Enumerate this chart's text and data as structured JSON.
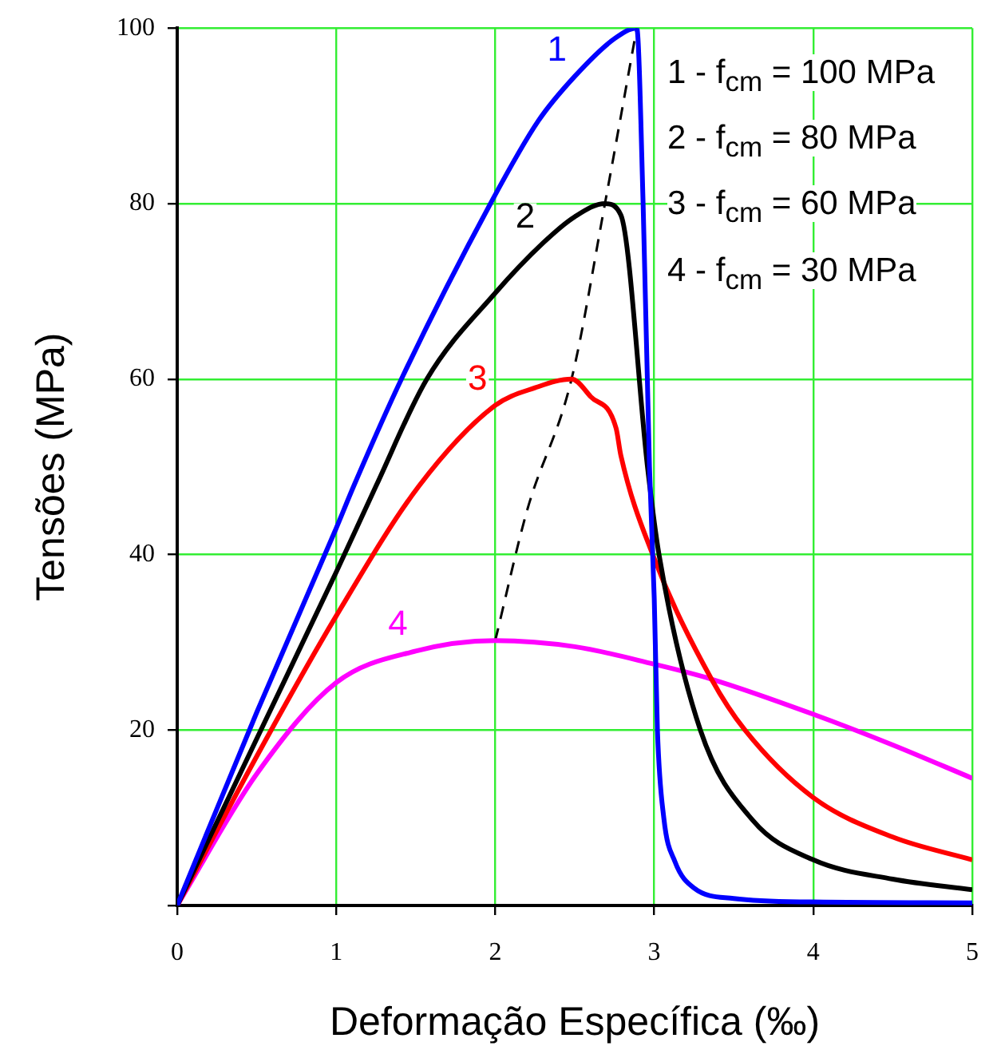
{
  "chart_data": {
    "type": "line",
    "xlabel": "Deformação Específica (‰)",
    "ylabel": "Tensões (MPa)",
    "xlim": [
      0,
      5
    ],
    "xticks": [
      0,
      1,
      2,
      3,
      4,
      5
    ],
    "ylim": [
      0,
      100
    ],
    "yticks": [
      {
        "value": 0,
        "label": null
      },
      20,
      40,
      60,
      80,
      100
    ],
    "grid": true,
    "legend": false,
    "marker": "none",
    "line_style": "solid",
    "annotations": [
      "1 - f$_{cm}$ = 100 MPa",
      "2 - f$_{cm}$ = 80 MPa",
      "3 - f$_{cm}$ = 60 MPa",
      "4 - f$_{cm}$ = 30 MPa"
    ],
    "series": [
      {
        "name": "1",
        "color": "#0000ff",
        "x": [
          0,
          0.5,
          1,
          1.11,
          1.41,
          1.97,
          2.27,
          2.5,
          2.75,
          2.89,
          2.93,
          2.97,
          3.0,
          3.02,
          3.06,
          3.13,
          3.25,
          3.5,
          4,
          5
        ],
        "values": [
          0,
          22,
          43,
          47.8,
          60,
          80,
          89.4,
          94.5,
          98.8,
          100,
          80,
          50,
          35,
          20,
          10,
          5,
          2,
          0.8,
          0.4,
          0.3
        ]
      },
      {
        "name": "2",
        "color": "#000000",
        "x": [
          0,
          0.5,
          1,
          1.25,
          1.57,
          2,
          2.3,
          2.5,
          2.69,
          2.79,
          2.96,
          3.03,
          3.29,
          3.62,
          4,
          4.5,
          5
        ],
        "values": [
          0,
          19,
          38,
          47.8,
          60,
          69.8,
          75.5,
          78.5,
          80,
          78.7,
          49.6,
          40,
          20,
          9.7,
          5.2,
          3,
          1.8
        ]
      },
      {
        "name": "3",
        "color": "#ff0000",
        "x": [
          0,
          0.5,
          1,
          1.52,
          2,
          2.25,
          2.48,
          2.6,
          2.76,
          2.79,
          2.99,
          3.36,
          3.57,
          4,
          4.5,
          5
        ],
        "values": [
          0,
          17,
          33,
          47.8,
          57,
          59,
          60,
          58,
          54.4,
          51.3,
          40,
          25.8,
          20,
          12.3,
          7.8,
          5.2
        ]
      },
      {
        "name": "4",
        "color": "#ff00ff",
        "x": [
          0,
          0.5,
          1,
          1.5,
          2,
          2.5,
          3,
          3.36,
          4,
          4.5,
          5
        ],
        "values": [
          0,
          15,
          25.4,
          29,
          30.2,
          29.5,
          27.5,
          25.8,
          21.8,
          18.3,
          14.5
        ]
      },
      {
        "type": "line",
        "line_style": "dashed",
        "color": "#000000",
        "x": [
          2,
          2.2,
          2.48,
          2.69,
          2.89
        ],
        "values": [
          30.2,
          45,
          60,
          80,
          100
        ]
      }
    ]
  }
}
